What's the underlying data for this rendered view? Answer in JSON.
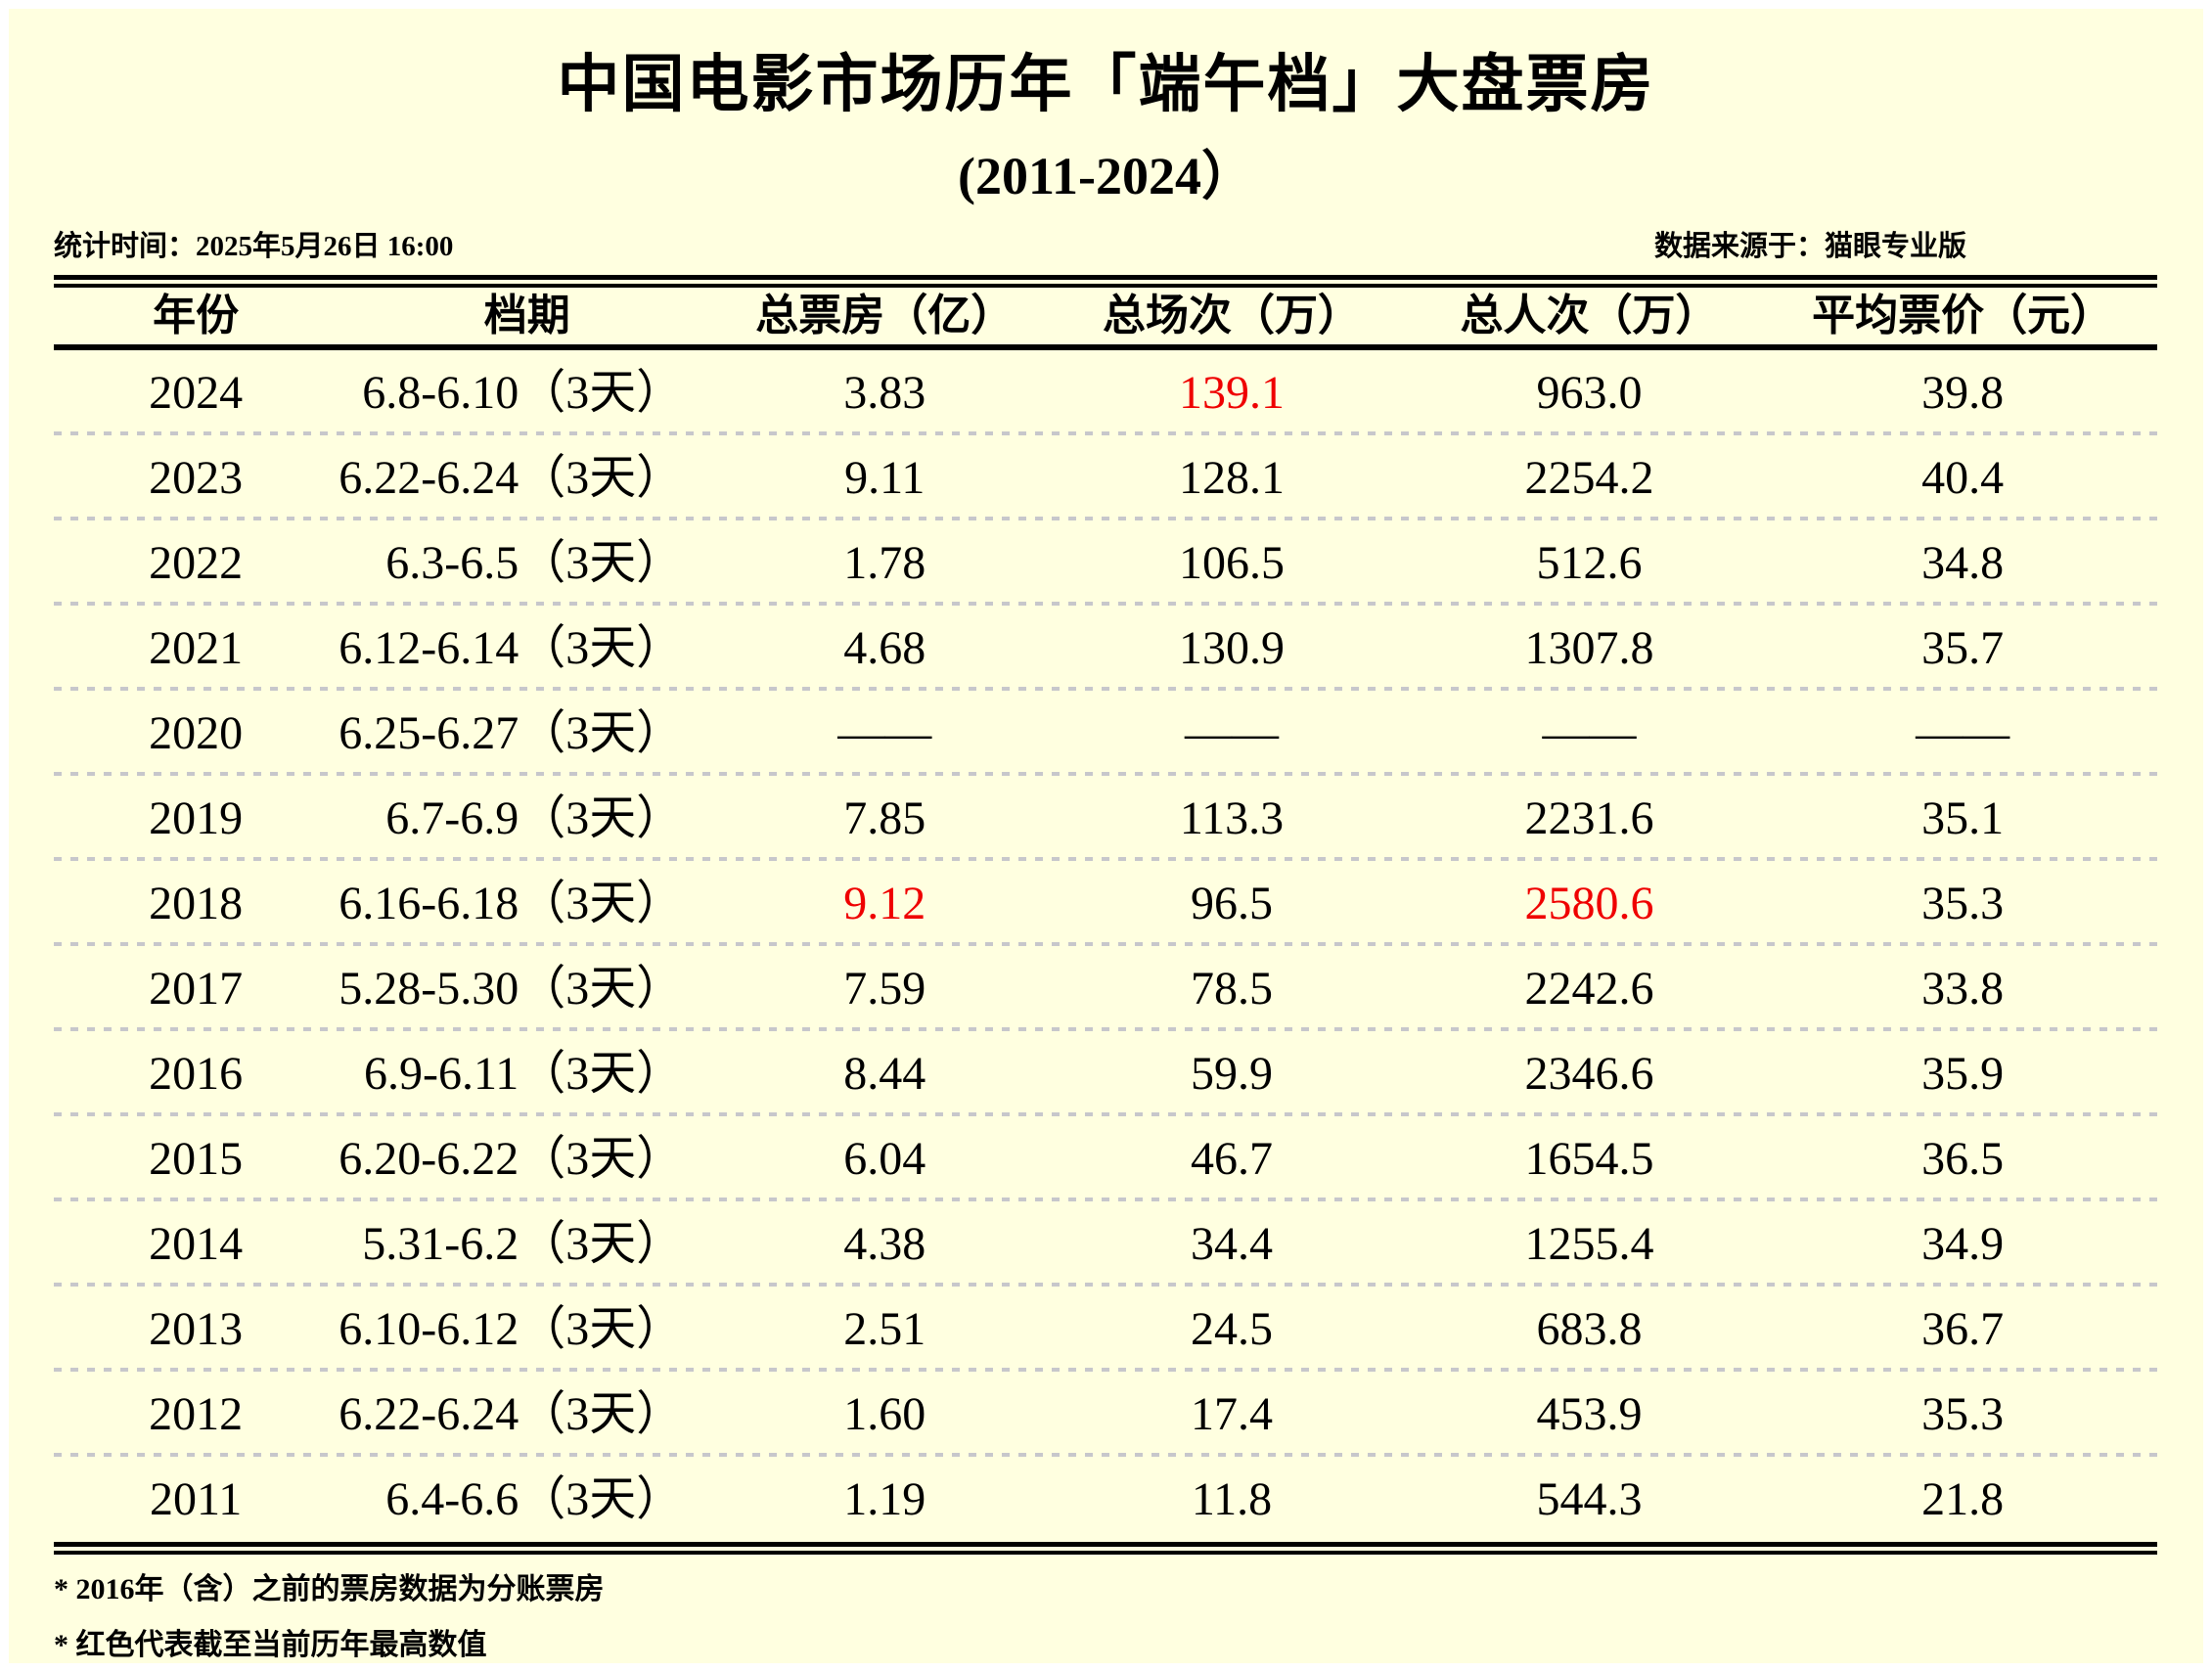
{
  "page": {
    "title": "中国电影市场历年「端午档」大盘票房",
    "subtitle": "(2011-2024）",
    "stat_time": "统计时间：2025年5月26日 16:00",
    "source": "数据来源于：猫眼专业版"
  },
  "table": {
    "columns": {
      "year": "年份",
      "period": "档期",
      "box": "总票房（亿）",
      "sessions": "总场次（万）",
      "attendance": "总人次（万）",
      "price": "平均票价（元）"
    },
    "rows": [
      {
        "year": "2024",
        "period": "6.8-6.10（3天）",
        "box": "3.83",
        "sessions": "139.1",
        "attendance": "963.0",
        "price": "39.8"
      },
      {
        "year": "2023",
        "period": "6.22-6.24（3天）",
        "box": "9.11",
        "sessions": "128.1",
        "attendance": "2254.2",
        "price": "40.4"
      },
      {
        "year": "2022",
        "period": "6.3-6.5（3天）",
        "box": "1.78",
        "sessions": "106.5",
        "attendance": "512.6",
        "price": "34.8"
      },
      {
        "year": "2021",
        "period": "6.12-6.14（3天）",
        "box": "4.68",
        "sessions": "130.9",
        "attendance": "1307.8",
        "price": "35.7"
      },
      {
        "year": "2020",
        "period": "6.25-6.27（3天）",
        "box": "——",
        "sessions": "——",
        "attendance": "——",
        "price": "——"
      },
      {
        "year": "2019",
        "period": "6.7-6.9（3天）",
        "box": "7.85",
        "sessions": "113.3",
        "attendance": "2231.6",
        "price": "35.1"
      },
      {
        "year": "2018",
        "period": "6.16-6.18（3天）",
        "box": "9.12",
        "sessions": "96.5",
        "attendance": "2580.6",
        "price": "35.3"
      },
      {
        "year": "2017",
        "period": "5.28-5.30（3天）",
        "box": "7.59",
        "sessions": "78.5",
        "attendance": "2242.6",
        "price": "33.8"
      },
      {
        "year": "2016",
        "period": "6.9-6.11（3天）",
        "box": "8.44",
        "sessions": "59.9",
        "attendance": "2346.6",
        "price": "35.9"
      },
      {
        "year": "2015",
        "period": "6.20-6.22（3天）",
        "box": "6.04",
        "sessions": "46.7",
        "attendance": "1654.5",
        "price": "36.5"
      },
      {
        "year": "2014",
        "period": "5.31-6.2（3天）",
        "box": "4.38",
        "sessions": "34.4",
        "attendance": "1255.4",
        "price": "34.9"
      },
      {
        "year": "2013",
        "period": "6.10-6.12（3天）",
        "box": "2.51",
        "sessions": "24.5",
        "attendance": "683.8",
        "price": "36.7"
      },
      {
        "year": "2012",
        "period": "6.22-6.24（3天）",
        "box": "1.60",
        "sessions": "17.4",
        "attendance": "453.9",
        "price": "35.3"
      },
      {
        "year": "2011",
        "period": "6.4-6.6（3天）",
        "box": "1.19",
        "sessions": "11.8",
        "attendance": "544.3",
        "price": "21.8"
      }
    ]
  },
  "footnotes": {
    "note1": "* 2016年（含）之前的票房数据为分账票房",
    "note2": "* 红色代表截至当前历年最高数值"
  },
  "colors": {
    "page_background": "#FFFFE0",
    "frame": "#FFFFFF",
    "text": "#000000",
    "highlight_red": "#EF0000",
    "divider_gray": "#C7C7CB"
  },
  "chart_data": {
    "type": "table",
    "title": "中国电影市场历年「端午档」大盘票房",
    "subtitle": "(2011-2024）",
    "columns": [
      "年份",
      "档期",
      "总票房（亿）",
      "总场次（万）",
      "总人次（万）",
      "平均票价（元）"
    ],
    "rows": [
      [
        "2024",
        "6.8-6.10（3天）",
        "3.83",
        "139.1",
        "963.0",
        "39.8"
      ],
      [
        "2023",
        "6.22-6.24（3天）",
        "9.11",
        "128.1",
        "2254.2",
        "40.4"
      ],
      [
        "2022",
        "6.3-6.5（3天）",
        "1.78",
        "106.5",
        "512.6",
        "34.8"
      ],
      [
        "2021",
        "6.12-6.14（3天）",
        "4.68",
        "130.9",
        "1307.8",
        "35.7"
      ],
      [
        "2020",
        "6.25-6.27（3天）",
        "——",
        "——",
        "——",
        "——"
      ],
      [
        "2019",
        "6.7-6.9（3天）",
        "7.85",
        "113.3",
        "2231.6",
        "35.1"
      ],
      [
        "2018",
        "6.16-6.18（3天）",
        "9.12",
        "96.5",
        "2580.6",
        "35.3"
      ],
      [
        "2017",
        "5.28-5.30（3天）",
        "7.59",
        "78.5",
        "2242.6",
        "33.8"
      ],
      [
        "2016",
        "6.9-6.11（3天）",
        "8.44",
        "59.9",
        "2346.6",
        "35.9"
      ],
      [
        "2015",
        "6.20-6.22（3天）",
        "6.04",
        "46.7",
        "1654.5",
        "36.5"
      ],
      [
        "2014",
        "5.31-6.2（3天）",
        "4.38",
        "34.4",
        "1255.4",
        "34.9"
      ],
      [
        "2013",
        "6.10-6.12（3天）",
        "2.51",
        "24.5",
        "683.8",
        "36.7"
      ],
      [
        "2012",
        "6.22-6.24（3天）",
        "1.60",
        "17.4",
        "453.9",
        "35.3"
      ],
      [
        "2011",
        "6.4-6.6（3天）",
        "1.19",
        "11.8",
        "544.3",
        "21.8"
      ]
    ],
    "highlighted_max_values": [
      {
        "year": "2024",
        "column": "总场次（万）",
        "value": 139.1
      },
      {
        "year": "2018",
        "column": "总票房（亿）",
        "value": 9.12
      },
      {
        "year": "2018",
        "column": "总人次（万）",
        "value": 2580.6
      }
    ],
    "notes": [
      "* 2016年（含）之前的票房数据为分账票房",
      "* 红色代表截至当前历年最高数值"
    ],
    "legend_position": "none",
    "grid": "dashed-row-separators"
  }
}
